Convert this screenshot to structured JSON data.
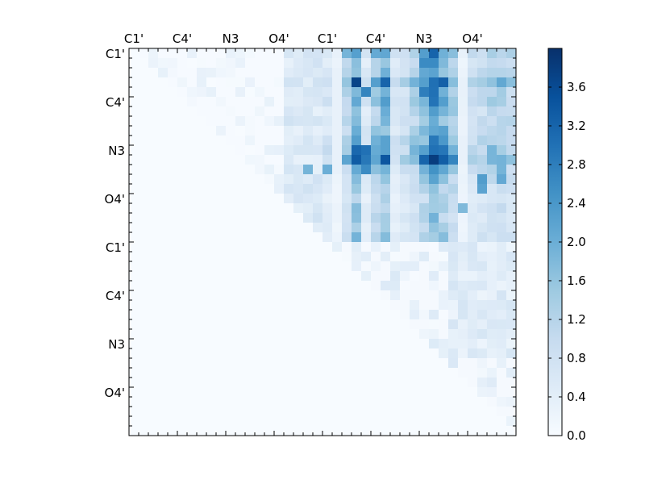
{
  "chart_data": {
    "type": "heatmap",
    "title": "",
    "xlabel": "",
    "ylabel": "",
    "x_tick_labels": [
      "C1'",
      "C4'",
      "N3",
      "O4'",
      "C1'",
      "C4'",
      "N3",
      "O4'"
    ],
    "y_tick_labels": [
      "C1'",
      "C4'",
      "N3",
      "O4'",
      "C1'",
      "C4'",
      "N3",
      "O4'"
    ],
    "x_axis_position": "top",
    "colorbar": {
      "ticks": [
        "0.0",
        "0.4",
        "0.8",
        "1.2",
        "1.6",
        "2.0",
        "2.4",
        "2.8",
        "3.2",
        "3.6"
      ],
      "range": [
        0,
        4.0
      ],
      "colormap": "Blues"
    },
    "grid": false,
    "n_rows": 40,
    "n_cols": 40,
    "blocks": [
      {
        "rows": [
          0,
          20
        ],
        "cols": [
          0,
          20
        ],
        "description": "upper triangle, low values 0.0-0.4"
      },
      {
        "rows": [
          0,
          20
        ],
        "cols": [
          16,
          40
        ],
        "description": "off-diagonal block, values 0.4-3.8"
      },
      {
        "rows": [
          20,
          40
        ],
        "cols": [
          20,
          40
        ],
        "description": "upper triangle, low values 0.0-1.0"
      }
    ],
    "value_range": [
      0.0,
      3.8
    ],
    "max_cell": {
      "row": 11,
      "col": 31,
      "value": 3.8
    }
  },
  "colors": {
    "cmap_low": "#f7fbff",
    "cmap_mid": "#6baed6",
    "cmap_high": "#08306b"
  }
}
